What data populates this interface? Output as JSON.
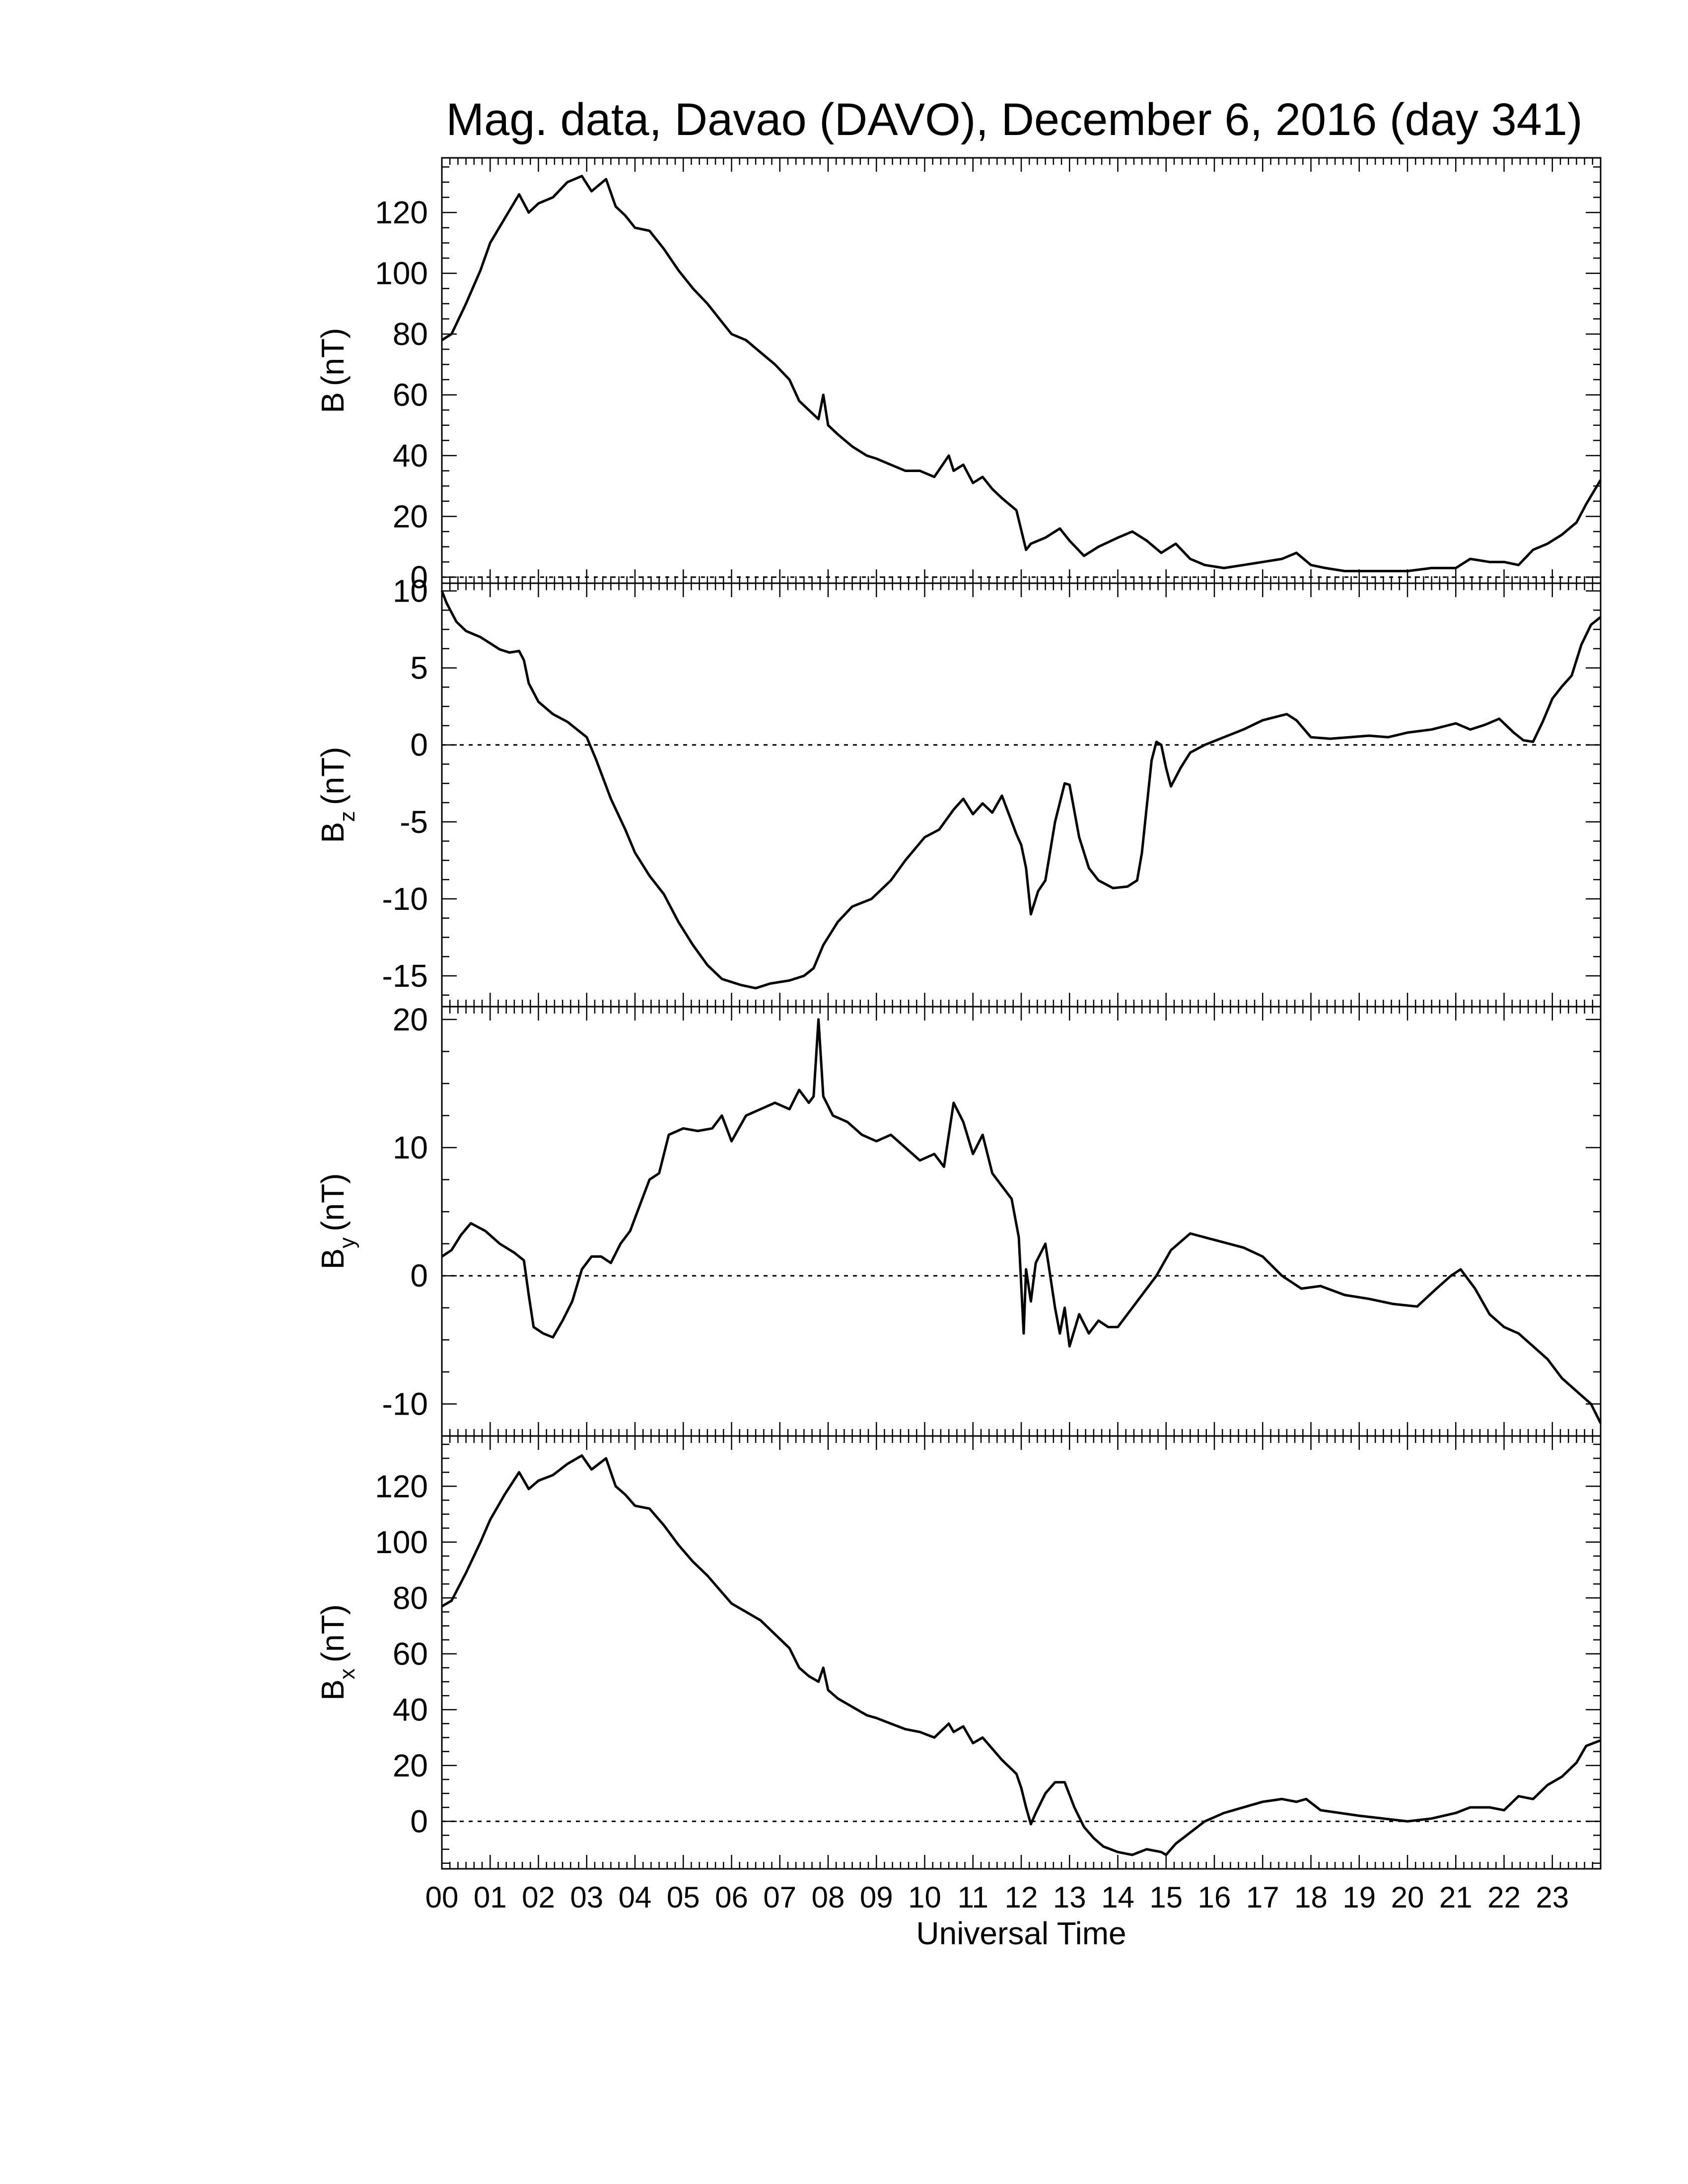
{
  "title": "Mag. data, Davao (DAVO), December 6, 2016 (day 341)",
  "xlabel": "Universal Time",
  "chart_data": [
    {
      "type": "line",
      "panel": "B",
      "ylabel": "B (nT)",
      "ylabel_main": "B",
      "ylabel_sub": "",
      "ylabel_unit": "(nT)",
      "xlim": [
        0,
        24
      ],
      "ylim": [
        -2,
        138
      ],
      "yticks": [
        0,
        20,
        40,
        60,
        80,
        100,
        120
      ],
      "zero_line": true,
      "series": [
        {
          "x": [
            0,
            0.2,
            0.5,
            0.8,
            1.0,
            1.3,
            1.6,
            1.8,
            2.0,
            2.3,
            2.6,
            2.9,
            3.1,
            3.4,
            3.6,
            3.8,
            4.0,
            4.3,
            4.6,
            4.9,
            5.2,
            5.5,
            5.8,
            6.0,
            6.3,
            6.6,
            6.9,
            7.2,
            7.4,
            7.6,
            7.8,
            7.9,
            8.0,
            8.2,
            8.5,
            8.8,
            9.0,
            9.3,
            9.6,
            9.9,
            10.2,
            10.5,
            10.6,
            10.8,
            11.0,
            11.2,
            11.4,
            11.6,
            11.9,
            12.1,
            12.2,
            12.5,
            12.8,
            13.0,
            13.3,
            13.6,
            14.0,
            14.3,
            14.6,
            14.9,
            15.2,
            15.5,
            15.8,
            16.2,
            16.6,
            17.0,
            17.4,
            17.7,
            18.0,
            18.3,
            18.7,
            19.0,
            19.5,
            20.0,
            20.5,
            21.0,
            21.3,
            21.7,
            22.0,
            22.3,
            22.6,
            22.9,
            23.2,
            23.5,
            23.7,
            24.0
          ],
          "y": [
            78,
            80,
            90,
            101,
            110,
            118,
            126,
            120,
            123,
            125,
            130,
            132,
            127,
            131,
            122,
            119,
            115,
            114,
            108,
            101,
            95,
            90,
            84,
            80,
            78,
            74,
            70,
            65,
            58,
            55,
            52,
            60,
            50,
            47,
            43,
            40,
            39,
            37,
            35,
            35,
            33,
            40,
            35,
            37,
            31,
            33,
            29,
            26,
            22,
            9,
            11,
            13,
            16,
            12,
            7,
            10,
            13,
            15,
            12,
            8,
            11,
            6,
            4,
            3,
            4,
            5,
            6,
            8,
            4,
            3,
            2,
            2,
            2,
            2,
            3,
            3,
            6,
            5,
            5,
            4,
            9,
            11,
            14,
            18,
            24,
            32
          ]
        }
      ]
    },
    {
      "type": "line",
      "panel": "Bz",
      "ylabel": "Bz (nT)",
      "ylabel_main": "B",
      "ylabel_sub": "z",
      "ylabel_unit": "(nT)",
      "xlim": [
        0,
        24
      ],
      "ylim": [
        -17,
        10.5
      ],
      "yticks": [
        10,
        5,
        0,
        -5,
        -10,
        -15
      ],
      "zero_line": true,
      "series": [
        {
          "x": [
            0,
            0.1,
            0.3,
            0.5,
            0.8,
            1.0,
            1.2,
            1.4,
            1.6,
            1.7,
            1.8,
            2.0,
            2.3,
            2.6,
            2.8,
            3.0,
            3.2,
            3.5,
            3.8,
            4.0,
            4.3,
            4.6,
            4.9,
            5.2,
            5.5,
            5.8,
            6.2,
            6.5,
            6.8,
            7.2,
            7.5,
            7.7,
            7.9,
            8.2,
            8.5,
            8.9,
            9.3,
            9.6,
            10.0,
            10.3,
            10.6,
            10.8,
            11.0,
            11.2,
            11.4,
            11.6,
            11.9,
            12.0,
            12.1,
            12.2,
            12.35,
            12.5,
            12.7,
            12.9,
            13.0,
            13.2,
            13.4,
            13.6,
            13.9,
            14.2,
            14.4,
            14.5,
            14.6,
            14.7,
            14.8,
            14.9,
            15.0,
            15.1,
            15.3,
            15.5,
            15.8,
            16.2,
            16.6,
            17.0,
            17.5,
            17.7,
            18.0,
            18.4,
            18.8,
            19.2,
            19.6,
            20.0,
            20.5,
            21.0,
            21.3,
            21.6,
            21.9,
            22.2,
            22.4,
            22.6,
            22.8,
            23.0,
            23.2,
            23.4,
            23.6,
            23.8,
            24.0
          ],
          "y": [
            10,
            9.2,
            8.0,
            7.4,
            7.0,
            6.6,
            6.2,
            6.0,
            6.1,
            5.5,
            4.0,
            2.8,
            2.0,
            1.5,
            1.0,
            0.5,
            -1.0,
            -3.5,
            -5.5,
            -7.0,
            -8.5,
            -9.7,
            -11.5,
            -13.0,
            -14.3,
            -15.2,
            -15.6,
            -15.8,
            -15.5,
            -15.3,
            -15.0,
            -14.5,
            -13.0,
            -11.5,
            -10.5,
            -10.0,
            -8.8,
            -7.5,
            -6.0,
            -5.5,
            -4.2,
            -3.5,
            -4.5,
            -3.8,
            -4.4,
            -3.3,
            -5.8,
            -6.5,
            -8.0,
            -11.0,
            -9.5,
            -8.8,
            -5.0,
            -2.5,
            -2.6,
            -6.0,
            -8.0,
            -8.8,
            -9.3,
            -9.2,
            -8.8,
            -7.0,
            -4.0,
            -1.0,
            0.2,
            0.0,
            -1.5,
            -2.7,
            -1.5,
            -0.5,
            0.0,
            0.5,
            1.0,
            1.6,
            2.0,
            1.6,
            0.5,
            0.4,
            0.5,
            0.6,
            0.5,
            0.8,
            1.0,
            1.4,
            1.0,
            1.3,
            1.7,
            0.8,
            0.3,
            0.2,
            1.5,
            3.0,
            3.8,
            4.5,
            6.5,
            7.8,
            8.3
          ]
        }
      ]
    },
    {
      "type": "line",
      "panel": "By",
      "ylabel": "By (nT)",
      "ylabel_main": "B",
      "ylabel_sub": "y",
      "ylabel_unit": "(nT)",
      "xlim": [
        0,
        24
      ],
      "ylim": [
        -12.5,
        21
      ],
      "yticks": [
        20,
        10,
        0,
        -10
      ],
      "zero_line": true,
      "series": [
        {
          "x": [
            0,
            0.2,
            0.4,
            0.6,
            0.9,
            1.2,
            1.5,
            1.7,
            1.8,
            1.9,
            2.1,
            2.3,
            2.5,
            2.7,
            2.9,
            3.1,
            3.3,
            3.5,
            3.7,
            3.9,
            4.1,
            4.3,
            4.5,
            4.7,
            5.0,
            5.3,
            5.6,
            5.8,
            6.0,
            6.3,
            6.6,
            6.9,
            7.2,
            7.4,
            7.6,
            7.7,
            7.8,
            7.9,
            8.1,
            8.4,
            8.7,
            9.0,
            9.3,
            9.6,
            9.9,
            10.2,
            10.4,
            10.6,
            10.8,
            11.0,
            11.2,
            11.4,
            11.6,
            11.8,
            11.95,
            12.05,
            12.1,
            12.2,
            12.3,
            12.5,
            12.6,
            12.7,
            12.8,
            12.9,
            13.0,
            13.2,
            13.4,
            13.6,
            13.8,
            14.0,
            14.2,
            14.5,
            14.8,
            15.1,
            15.5,
            15.8,
            16.2,
            16.6,
            17.0,
            17.4,
            17.8,
            18.2,
            18.7,
            19.2,
            19.7,
            20.2,
            20.6,
            20.9,
            21.1,
            21.4,
            21.7,
            22.0,
            22.3,
            22.6,
            22.9,
            23.2,
            23.5,
            23.8,
            24.0
          ],
          "y": [
            1.5,
            2.0,
            3.2,
            4.1,
            3.5,
            2.5,
            1.8,
            1.2,
            -1.5,
            -4.0,
            -4.5,
            -4.8,
            -3.5,
            -2.0,
            0.5,
            1.5,
            1.5,
            1.0,
            2.5,
            3.5,
            5.5,
            7.5,
            8.0,
            11.0,
            11.5,
            11.3,
            11.5,
            12.5,
            10.5,
            12.5,
            13.0,
            13.5,
            13.0,
            14.5,
            13.5,
            14.0,
            20.0,
            14.0,
            12.5,
            12.0,
            11.0,
            10.5,
            11.0,
            10.0,
            9.0,
            9.5,
            8.5,
            13.5,
            12.0,
            9.5,
            11.0,
            8.0,
            7.0,
            6.0,
            3.0,
            -4.5,
            0.5,
            -2.0,
            1.0,
            2.5,
            0.0,
            -2.5,
            -4.5,
            -2.5,
            -5.5,
            -3.0,
            -4.5,
            -3.5,
            -4.0,
            -4.0,
            -3.0,
            -1.5,
            0.0,
            2.0,
            3.3,
            3.0,
            2.6,
            2.2,
            1.5,
            0.0,
            -1.0,
            -0.8,
            -1.5,
            -1.8,
            -2.2,
            -2.4,
            -1.0,
            0.0,
            0.5,
            -1.0,
            -3.0,
            -4.0,
            -4.5,
            -5.5,
            -6.5,
            -8.0,
            -9.0,
            -10.0,
            -11.5
          ]
        }
      ]
    },
    {
      "type": "line",
      "panel": "Bx",
      "ylabel": "Bx (nT)",
      "ylabel_main": "B",
      "ylabel_sub": "x",
      "ylabel_unit": "(nT)",
      "xlim": [
        0,
        24
      ],
      "ylim": [
        -17,
        138
      ],
      "yticks": [
        0,
        20,
        40,
        60,
        80,
        100,
        120
      ],
      "zero_line": true,
      "series": [
        {
          "x": [
            0,
            0.2,
            0.5,
            0.8,
            1.0,
            1.3,
            1.6,
            1.8,
            2.0,
            2.3,
            2.6,
            2.9,
            3.1,
            3.4,
            3.6,
            3.8,
            4.0,
            4.3,
            4.6,
            4.9,
            5.2,
            5.5,
            5.8,
            6.0,
            6.3,
            6.6,
            6.9,
            7.2,
            7.4,
            7.6,
            7.8,
            7.9,
            8.0,
            8.2,
            8.5,
            8.8,
            9.0,
            9.3,
            9.6,
            9.9,
            10.2,
            10.5,
            10.6,
            10.8,
            11.0,
            11.2,
            11.4,
            11.6,
            11.9,
            12.0,
            12.1,
            12.2,
            12.3,
            12.5,
            12.7,
            12.9,
            13.1,
            13.3,
            13.5,
            13.7,
            14.0,
            14.3,
            14.6,
            14.9,
            15.0,
            15.2,
            15.5,
            15.8,
            16.2,
            16.6,
            17.0,
            17.4,
            17.7,
            17.9,
            18.2,
            18.6,
            19.0,
            19.5,
            20.0,
            20.5,
            21.0,
            21.3,
            21.7,
            22.0,
            22.3,
            22.6,
            22.9,
            23.2,
            23.5,
            23.7,
            24.0
          ],
          "y": [
            77,
            79,
            89,
            100,
            108,
            117,
            125,
            119,
            122,
            124,
            128,
            131,
            126,
            130,
            120,
            117,
            113,
            112,
            106,
            99,
            93,
            88,
            82,
            78,
            75,
            72,
            67,
            62,
            55,
            52,
            50,
            55,
            47,
            44,
            41,
            38,
            37,
            35,
            33,
            32,
            30,
            35,
            32,
            34,
            28,
            30,
            26,
            22,
            17,
            12,
            5,
            -1,
            3,
            10,
            14,
            14,
            5,
            -2,
            -6,
            -9,
            -11,
            -12,
            -10,
            -11,
            -12,
            -8,
            -4,
            0,
            3,
            5,
            7,
            8,
            7,
            8,
            4,
            3,
            2,
            1,
            0,
            1,
            3,
            5,
            5,
            4,
            9,
            8,
            13,
            16,
            21,
            27,
            29
          ]
        }
      ]
    }
  ]
}
